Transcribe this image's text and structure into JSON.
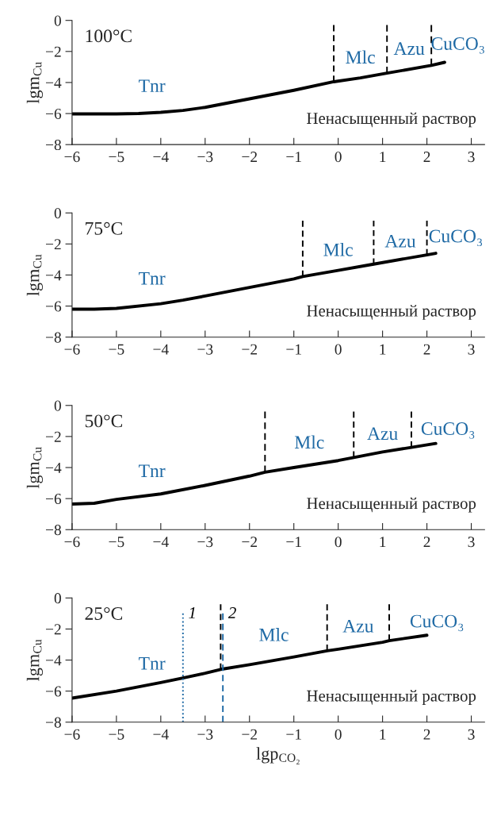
{
  "chart_data": [
    {
      "type": "line",
      "title": "100°C",
      "ylabel": "lgm$_{Cu}$",
      "xlim": [
        -6,
        3.3
      ],
      "xticks": [
        -6,
        -5,
        -4,
        -3,
        -2,
        -1,
        0,
        1,
        2,
        3
      ],
      "ylim": [
        -8,
        0
      ],
      "yticks": [
        -8,
        -6,
        -4,
        -2,
        0
      ],
      "series": [
        {
          "color": "#000000",
          "line_style": "solid",
          "x": [
            -6,
            -5,
            -4.5,
            -4,
            -3.5,
            -3,
            -2,
            -1,
            -0.1,
            0.5,
            1.1,
            2.1,
            2.4
          ],
          "values": [
            -6.02,
            -6.02,
            -6.0,
            -5.92,
            -5.8,
            -5.6,
            -5.05,
            -4.5,
            -3.95,
            -3.7,
            -3.4,
            -2.9,
            -2.7
          ]
        },
        {
          "color": "#000000",
          "line_style": "dashed",
          "x": [
            -0.1,
            -0.1
          ],
          "values": [
            -3.95,
            -0.3
          ]
        },
        {
          "color": "#000000",
          "line_style": "dashed",
          "x": [
            1.1,
            1.1
          ],
          "values": [
            -3.4,
            -0.3
          ]
        },
        {
          "color": "#000000",
          "line_style": "dashed",
          "x": [
            2.1,
            2.1
          ],
          "values": [
            -2.9,
            -0.3
          ]
        }
      ],
      "annotations": [
        "Tnr",
        "Mlc",
        "Azu",
        "CuCO₃",
        "Ненасыщенный раствор"
      ]
    },
    {
      "type": "line",
      "title": "75°C",
      "ylabel": "lgm$_{Cu}$",
      "xlim": [
        -6,
        3.3
      ],
      "xticks": [
        -6,
        -5,
        -4,
        -3,
        -2,
        -1,
        0,
        1,
        2,
        3
      ],
      "ylim": [
        -8,
        0
      ],
      "yticks": [
        -8,
        -6,
        -4,
        -2,
        0
      ],
      "series": [
        {
          "color": "#000000",
          "line_style": "solid",
          "x": [
            -6,
            -5.5,
            -5,
            -4,
            -3.5,
            -3,
            -2,
            -1,
            -0.8,
            0,
            0.8,
            2,
            2.2
          ],
          "values": [
            -6.2,
            -6.2,
            -6.15,
            -5.85,
            -5.62,
            -5.35,
            -4.8,
            -4.25,
            -4.1,
            -3.7,
            -3.3,
            -2.7,
            -2.6
          ]
        },
        {
          "color": "#000000",
          "line_style": "dashed",
          "x": [
            -0.8,
            -0.8
          ],
          "values": [
            -4.1,
            -0.5
          ]
        },
        {
          "color": "#000000",
          "line_style": "dashed",
          "x": [
            0.8,
            0.8
          ],
          "values": [
            -3.3,
            -0.5
          ]
        },
        {
          "color": "#000000",
          "line_style": "dashed",
          "x": [
            2.0,
            2.0
          ],
          "values": [
            -2.7,
            -0.5
          ]
        }
      ],
      "annotations": [
        "Tnr",
        "Mlc",
        "Azu",
        "CuCO₃",
        "Ненасыщенный раствор"
      ]
    },
    {
      "type": "line",
      "title": "50°C",
      "ylabel": "lgm$_{Cu}$",
      "xlim": [
        -6,
        3.3
      ],
      "xticks": [
        -6,
        -5,
        -4,
        -3,
        -2,
        -1,
        0,
        1,
        2,
        3
      ],
      "ylim": [
        -8,
        0
      ],
      "yticks": [
        -8,
        -6,
        -4,
        -2,
        0
      ],
      "series": [
        {
          "color": "#000000",
          "line_style": "solid",
          "x": [
            -6,
            -5.5,
            -5,
            -4,
            -3,
            -2,
            -1.65,
            -1,
            0,
            0.35,
            1,
            1.65,
            2.2
          ],
          "values": [
            -6.35,
            -6.3,
            -6.05,
            -5.7,
            -5.15,
            -4.55,
            -4.3,
            -4.0,
            -3.55,
            -3.35,
            -3.0,
            -2.7,
            -2.45
          ]
        },
        {
          "color": "#000000",
          "line_style": "dashed",
          "x": [
            -1.65,
            -1.65
          ],
          "values": [
            -4.3,
            -0.4
          ]
        },
        {
          "color": "#000000",
          "line_style": "dashed",
          "x": [
            0.35,
            0.35
          ],
          "values": [
            -3.35,
            -0.4
          ]
        },
        {
          "color": "#000000",
          "line_style": "dashed",
          "x": [
            1.65,
            1.65
          ],
          "values": [
            -2.7,
            -0.4
          ]
        }
      ],
      "annotations": [
        "Tnr",
        "Mlc",
        "Azu",
        "CuCO₃",
        "Ненасыщенный раствор"
      ]
    },
    {
      "type": "line",
      "title": "25°C",
      "ylabel": "lgm$_{Cu}$",
      "xlabel": "lgp$_{CO₂}$",
      "xlim": [
        -6,
        3.3
      ],
      "xticks": [
        -6,
        -5,
        -4,
        -3,
        -2,
        -1,
        0,
        1,
        2,
        3
      ],
      "ylim": [
        -8,
        0
      ],
      "yticks": [
        -8,
        -6,
        -4,
        -2,
        0
      ],
      "series": [
        {
          "color": "#000000",
          "line_style": "solid",
          "x": [
            -6,
            -5,
            -4,
            -3.5,
            -3,
            -2.65,
            -2,
            -1,
            -0.25,
            0,
            1,
            1.15,
            2
          ],
          "values": [
            -6.45,
            -6.0,
            -5.45,
            -5.15,
            -4.85,
            -4.6,
            -4.3,
            -3.8,
            -3.4,
            -3.3,
            -2.85,
            -2.75,
            -2.4
          ]
        },
        {
          "color": "#000000",
          "line_style": "dashed",
          "x": [
            -2.65,
            -2.65
          ],
          "values": [
            -4.6,
            -0.4
          ]
        },
        {
          "color": "#000000",
          "line_style": "dashed",
          "x": [
            -0.25,
            -0.25
          ],
          "values": [
            -3.4,
            -0.4
          ]
        },
        {
          "color": "#000000",
          "line_style": "dashed",
          "x": [
            1.15,
            1.15
          ],
          "values": [
            -2.75,
            -0.4
          ]
        },
        {
          "name": "1",
          "color": "#1f6aa5",
          "line_style": "dotted",
          "x": [
            -3.5,
            -3.5
          ],
          "values": [
            -8,
            -1.0
          ]
        },
        {
          "name": "2",
          "color": "#1f6aa5",
          "line_style": "dashed",
          "x": [
            -2.6,
            -2.6
          ],
          "values": [
            -8,
            -1.0
          ]
        }
      ],
      "annotations": [
        "Tnr",
        "Mlc",
        "Azu",
        "CuCO₃",
        "Ненасыщенный раствор"
      ]
    }
  ]
}
